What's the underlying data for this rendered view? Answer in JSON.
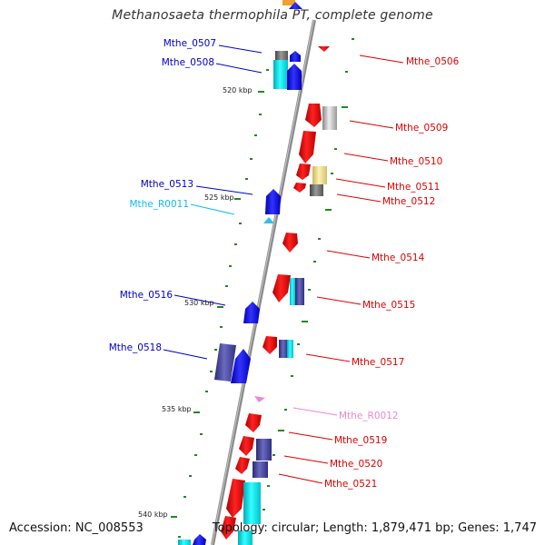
{
  "title": "Methanosaeta thermophila PT, complete genome",
  "accession": "Accession: NC_008553",
  "topology": "Topology: circular; Length: 1,879,471 bp; Genes: 1,747",
  "scale_labels": [
    "520 kbp",
    "525 kbp",
    "530 kbp",
    "535 kbp",
    "540 kbp"
  ],
  "gene_labels": {
    "left": [
      "Mthe_0507",
      "Mthe_0508",
      "Mthe_0513",
      "Mthe_R0011",
      "Mthe_0516",
      "Mthe_0518"
    ],
    "right": [
      "Mthe_0506",
      "Mthe_0509",
      "Mthe_0510",
      "Mthe_0511",
      "Mthe_0512",
      "Mthe_0514",
      "Mthe_0515",
      "Mthe_0517",
      "Mthe_R0012",
      "Mthe_0519",
      "Mthe_0520",
      "Mthe_0521"
    ]
  },
  "colors": {
    "forward_cds": "#0000ee",
    "reverse_cds": "#ee0000",
    "forward_rna": "#33bbee",
    "reverse_rna": "#ee88cc",
    "backbone": "#888888",
    "tick": "#228822",
    "cog_cyan": "#00e5ee",
    "cog_navy": "#4b4b9e",
    "cog_gray": "#777777",
    "cog_silver": "#bbbbbb",
    "cog_khaki": "#eedd88"
  }
}
